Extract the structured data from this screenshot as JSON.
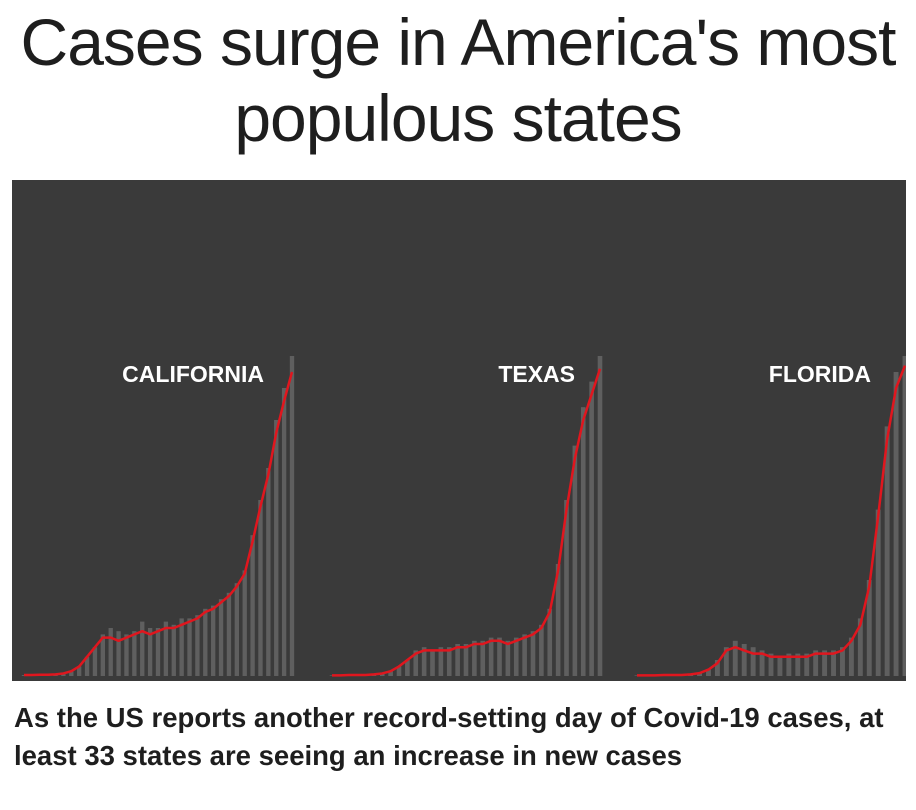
{
  "headline": "Cases surge in America's most populous states",
  "caption": "As the US reports another record-setting day of Covid-19 cases, at least 33 states are seeing an increase in new cases",
  "colors": {
    "panel_bg": "#3a3a3a",
    "bars": "#5f5f5f",
    "trend_line": "#e0161e",
    "label": "#ffffff",
    "headline": "#1e1e1e"
  },
  "chart_data": [
    {
      "type": "bar",
      "label": "CALIFORNIA",
      "title": "",
      "xlabel": "",
      "ylabel": "",
      "grid": false,
      "series": [
        {
          "values": [
            0.3,
            0.3,
            0.4,
            0.4,
            0.5,
            0.8,
            1.5,
            3,
            6,
            9,
            13,
            15,
            14,
            13,
            14,
            17,
            15,
            15,
            17,
            16,
            18,
            18,
            19,
            21,
            22,
            24,
            26,
            29,
            33,
            44,
            55,
            65,
            80,
            90,
            100
          ]
        },
        {
          "style": "line",
          "values": [
            0.3,
            0.3,
            0.4,
            0.4,
            0.5,
            0.8,
            1.5,
            3,
            6,
            9,
            12,
            12,
            11,
            12,
            13,
            14,
            13,
            14,
            15,
            15,
            16,
            17,
            18,
            20,
            21,
            23,
            25,
            28,
            32,
            42,
            53,
            63,
            76,
            86,
            95
          ]
        }
      ]
    },
    {
      "type": "bar",
      "label": "TEXAS",
      "title": "",
      "xlabel": "",
      "ylabel": "",
      "grid": false,
      "series": [
        {
          "values": [
            0.2,
            0.2,
            0.3,
            0.3,
            0.3,
            0.5,
            0.8,
            1.5,
            3,
            5,
            8,
            9,
            8,
            9,
            9,
            10,
            10,
            11,
            11,
            12,
            12,
            11,
            12,
            13,
            14,
            16,
            21,
            35,
            55,
            72,
            84,
            92,
            100
          ]
        },
        {
          "style": "line",
          "values": [
            0.2,
            0.2,
            0.3,
            0.3,
            0.3,
            0.5,
            0.8,
            1.5,
            3,
            5,
            7,
            8,
            8,
            8,
            8,
            9,
            9,
            10,
            10,
            11,
            11,
            10,
            11,
            12,
            13,
            15,
            20,
            33,
            52,
            68,
            80,
            88,
            96
          ]
        }
      ]
    },
    {
      "type": "bar",
      "label": "FLORIDA",
      "title": "",
      "xlabel": "",
      "ylabel": "",
      "grid": false,
      "series": [
        {
          "values": [
            0.2,
            0.2,
            0.2,
            0.3,
            0.3,
            0.3,
            0.5,
            0.9,
            2,
            5,
            9,
            11,
            10,
            9,
            8,
            7,
            6,
            7,
            7,
            7,
            8,
            8,
            8,
            9,
            12,
            18,
            30,
            52,
            78,
            95,
            100
          ]
        },
        {
          "style": "line",
          "values": [
            0.2,
            0.2,
            0.2,
            0.3,
            0.3,
            0.3,
            0.5,
            0.9,
            2,
            4,
            8,
            9,
            8,
            7,
            7,
            6,
            6,
            6,
            6,
            6,
            7,
            7,
            7,
            8,
            11,
            16,
            28,
            50,
            74,
            90,
            97
          ]
        }
      ]
    }
  ]
}
